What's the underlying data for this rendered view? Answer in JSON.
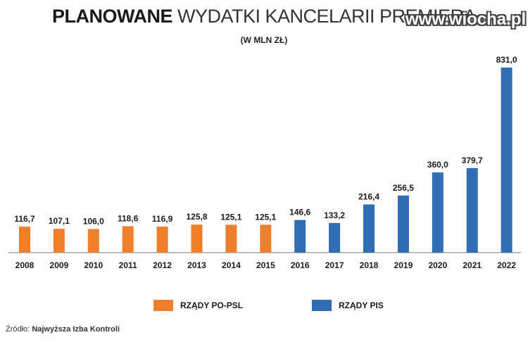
{
  "title_bold": "PLANOWANE",
  "title_rest": "WYDATKI KANCELARII PREMIERA",
  "subtitle": "(W MLN ZŁ)",
  "watermark": "www.wiocha.pl",
  "legend": [
    {
      "label": "RZĄDY PO-PSL",
      "color": "#f07f2b"
    },
    {
      "label": "RZĄDY PIS",
      "color": "#2f6db5"
    }
  ],
  "source_prefix": "Źródło:",
  "source_name": "Najwyższa Izba Kontroli",
  "chart_data": {
    "type": "bar",
    "title": "PLANOWANE WYDATKI KANCELARII PREMIERA",
    "subtitle": "(W MLN ZŁ)",
    "categories": [
      "2008",
      "2009",
      "2010",
      "2011",
      "2012",
      "2013",
      "2014",
      "2015",
      "2016",
      "2017",
      "2018",
      "2019",
      "2020",
      "2021",
      "2022"
    ],
    "values": [
      116.7,
      107.1,
      106.0,
      118.6,
      116.9,
      125.8,
      125.1,
      125.1,
      146.6,
      133.2,
      216.4,
      256.5,
      360.0,
      379.7,
      831.0
    ],
    "value_labels": [
      "116,7",
      "107,1",
      "106,0",
      "118,6",
      "116,9",
      "125,8",
      "125,1",
      "125,1",
      "146,6",
      "133,2",
      "216,4",
      "256,5",
      "360,0",
      "379,7",
      "831,0"
    ],
    "series_groups": [
      "RZĄDY PO-PSL",
      "RZĄDY PO-PSL",
      "RZĄDY PO-PSL",
      "RZĄDY PO-PSL",
      "RZĄDY PO-PSL",
      "RZĄDY PO-PSL",
      "RZĄDY PO-PSL",
      "RZĄDY PO-PSL",
      "RZĄDY PIS",
      "RZĄDY PIS",
      "RZĄDY PIS",
      "RZĄDY PIS",
      "RZĄDY PIS",
      "RZĄDY PIS",
      "RZĄDY PIS"
    ],
    "colors": {
      "RZĄDY PO-PSL": "#f07f2b",
      "RZĄDY PIS": "#2f6db5"
    },
    "ylim": [
      0,
      831
    ],
    "grid": false,
    "legend_position": "bottom"
  }
}
